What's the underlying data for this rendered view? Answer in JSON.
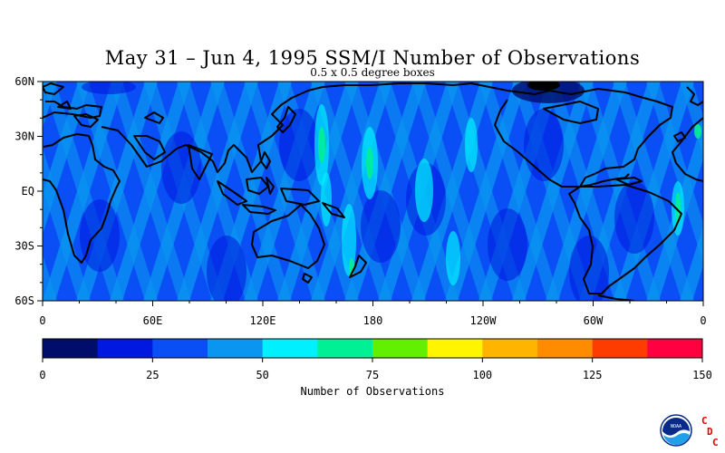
{
  "title": "May 31 – Jun 4, 1995 SSM/I Number of Observations",
  "subtitle": "0.5 x 0.5 degree boxes",
  "map": {
    "lat_labels": [
      "60N",
      "30N",
      "EQ",
      "30S",
      "60S"
    ],
    "lon_labels": [
      "0",
      "60E",
      "120E",
      "180",
      "120W",
      "60W",
      "0"
    ]
  },
  "colorbar": {
    "label": "Number of Observations",
    "tick_labels": [
      "0",
      "25",
      "50",
      "75",
      "100",
      "125",
      "150"
    ],
    "range": [
      0,
      150
    ],
    "colors": [
      "#000d6b",
      "#0018e0",
      "#0a4ff5",
      "#0a96f0",
      "#00f0ff",
      "#00f096",
      "#63f000",
      "#fff500",
      "#ffb400",
      "#ff8c00",
      "#ff3c00",
      "#ff0041"
    ]
  },
  "logo": {
    "emblem_text": "NOAA",
    "letters": [
      "C",
      "D",
      "C"
    ]
  }
}
